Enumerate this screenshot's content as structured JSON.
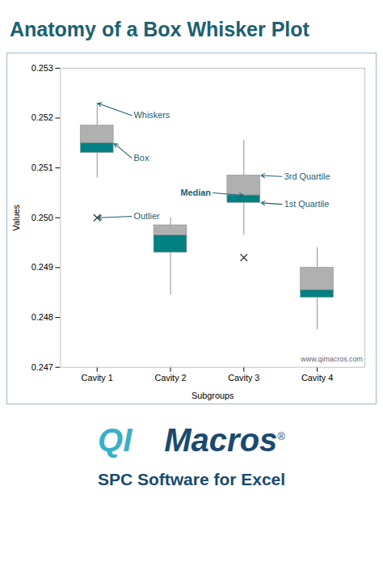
{
  "chart_data": {
    "type": "box",
    "title": "Anatomy of a Box Whisker Plot",
    "title_color": "#1b6172",
    "xlabel": "Subgroups",
    "ylabel": "Values",
    "categories": [
      "Cavity 1",
      "Cavity 2",
      "Cavity 3",
      "Cavity 4"
    ],
    "boxes": [
      {
        "q1": 0.2513,
        "median": 0.2515,
        "q3": 0.25185,
        "whisker_low": 0.2508,
        "whisker_high": 0.2523,
        "outlier": 0.25
      },
      {
        "q1": 0.2493,
        "median": 0.24965,
        "q3": 0.24985,
        "whisker_low": 0.24845,
        "whisker_high": 0.25,
        "outlier": null
      },
      {
        "q1": 0.2503,
        "median": 0.25045,
        "q3": 0.25085,
        "whisker_low": 0.24965,
        "whisker_high": 0.25155,
        "outlier": 0.2492
      },
      {
        "q1": 0.2484,
        "median": 0.24855,
        "q3": 0.249,
        "whisker_low": 0.24775,
        "whisker_high": 0.2494,
        "outlier": null
      }
    ],
    "colors": {
      "box_upper": "#b0b0b0",
      "box_lower": "#008080",
      "whisker": "#909090",
      "outlier": "#404040",
      "border": "#a0b8c8"
    },
    "ylim": [
      0.247,
      0.253
    ],
    "yticks": [
      0.247,
      0.248,
      0.249,
      {
        "value": 0.25,
        "label": "0.250"
      },
      0.251,
      0.252,
      0.253
    ],
    "grid": false,
    "annotations": [
      "Whiskers",
      "Box",
      "Outlier",
      "Median",
      "3rd Quartile",
      "1st Quartile"
    ],
    "annotation_color": "#1b6172",
    "footer": {
      "text": "www.qimacros.com",
      "color": "#666666"
    },
    "logo": {
      "parts": [
        {
          "text": "QI",
          "color": "#3ab0c8"
        },
        {
          "text": "Macros",
          "color": "#1a4a6e"
        },
        {
          "text": "®",
          "color": "#1a4a6e"
        }
      ],
      "subtitle": {
        "text": "SPC Software for Excel",
        "color": "#1a4a6e"
      }
    }
  }
}
